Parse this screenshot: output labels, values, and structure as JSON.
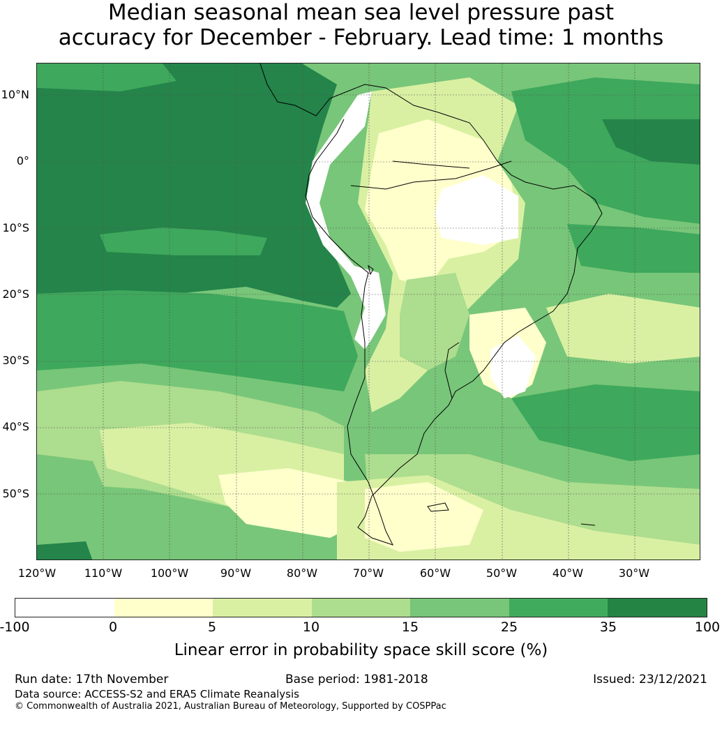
{
  "title": {
    "line1": "Median seasonal mean sea level pressure past",
    "line2": "accuracy for December - February. Lead time: 1 months"
  },
  "map": {
    "lat_labels": [
      "10°N",
      "0°",
      "10°S",
      "20°S",
      "30°S",
      "40°S",
      "50°S"
    ],
    "lon_labels": [
      "120°W",
      "110°W",
      "100°W",
      "90°W",
      "80°W",
      "70°W",
      "60°W",
      "50°W",
      "40°W",
      "30°W"
    ],
    "colors": {
      "ocean_dark": "#24844a",
      "ocean_mid": "#3ea85c",
      "med_green": "#78c679",
      "light_green": "#addd8e",
      "pale_green": "#d9f0a3",
      "cream": "#ffffcc",
      "white": "#ffffff",
      "coast": "#000000",
      "grid": "#555555"
    }
  },
  "colorbar": {
    "ticks": [
      "-100",
      "0",
      "5",
      "10",
      "15",
      "25",
      "35",
      "100"
    ],
    "colors": [
      "#ffffff",
      "#ffffcc",
      "#d9f0a3",
      "#addd8e",
      "#78c679",
      "#41ab5d",
      "#238443"
    ],
    "label": "Linear error in probability space skill score (%)"
  },
  "footer": {
    "run_date": "Run date: 17th November",
    "base_period": "Base period: 1981-2018",
    "issued": "Issued: 23/12/2021",
    "data_source": "Data source: ACCESS-S2 and ERA5 Climate Reanalysis",
    "copyright": "© Commonwealth of Australia 2021, Australian Bureau of Meteorology, Supported by COSPPac"
  }
}
